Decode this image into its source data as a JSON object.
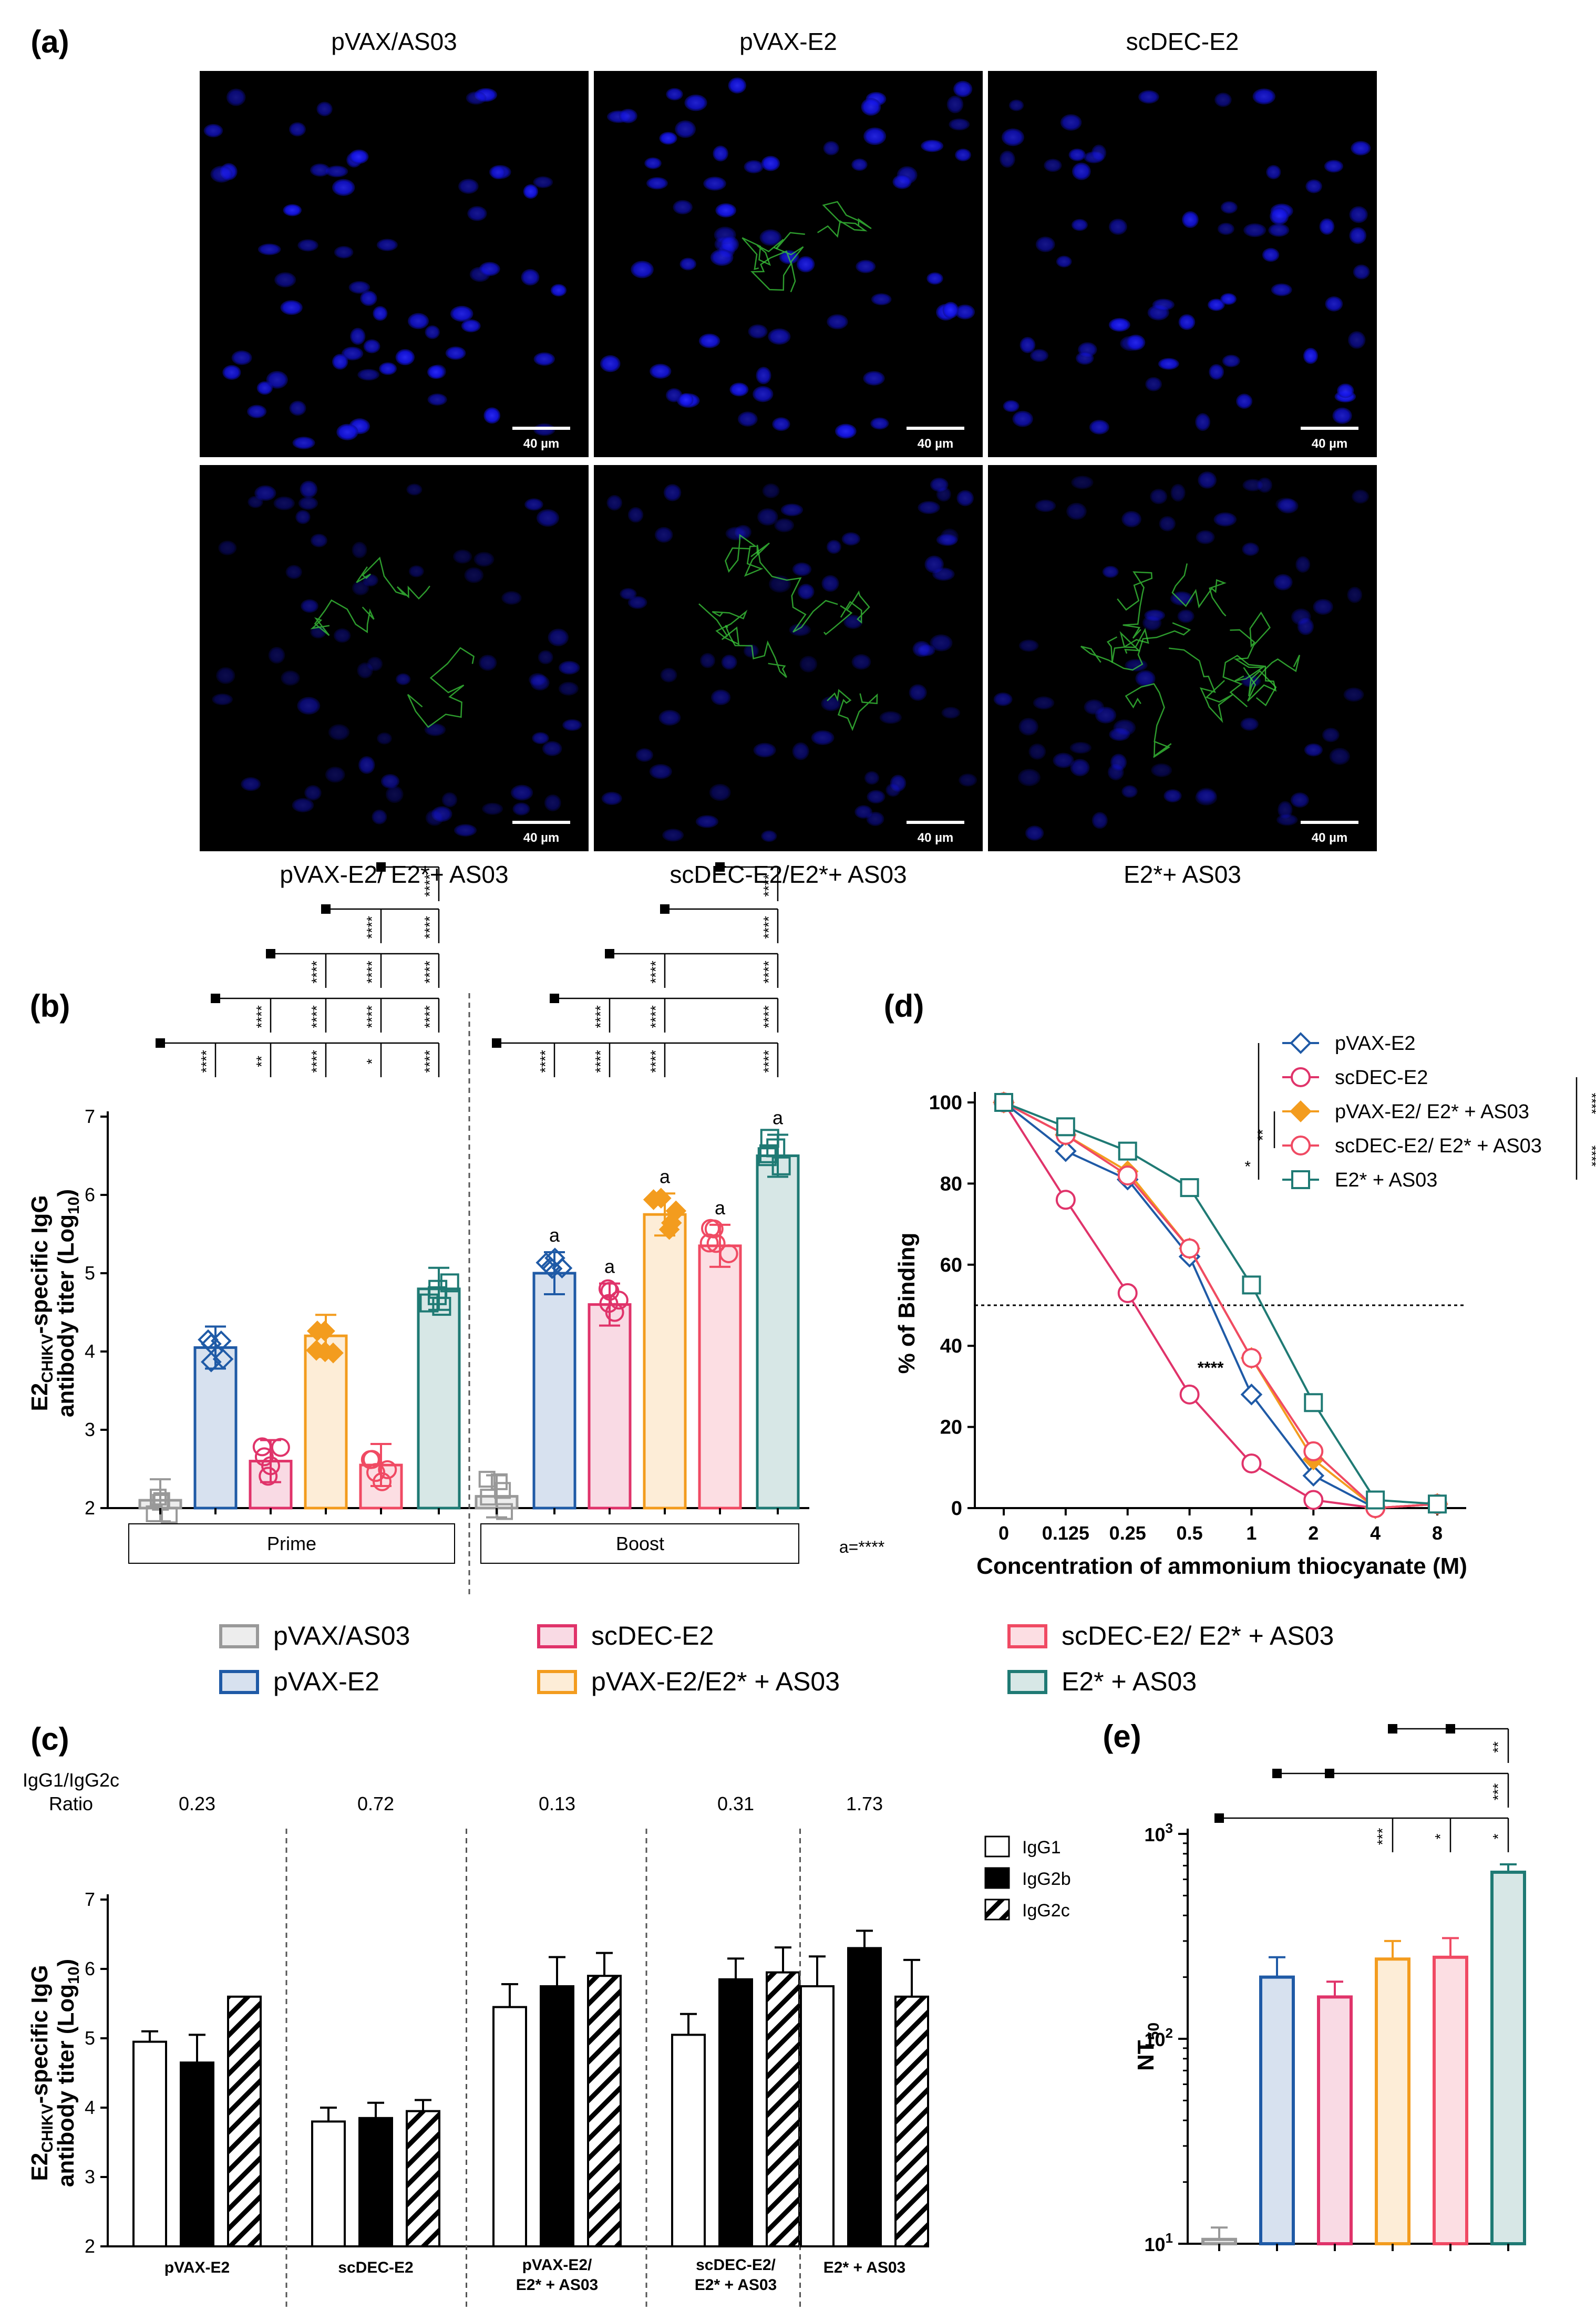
{
  "colors": {
    "pvax_as03": "#999999",
    "pvax_e2": "#1f5aa6",
    "scdec_e2": "#e0336a",
    "pvax_e2_e2_as03": "#f39c1e",
    "scdec_e2_e2_as03": "#f04a63",
    "e2_as03": "#1f7a74",
    "nucleus": "#1010ee",
    "e2_signal": "#3ccf3c"
  },
  "panel_a": {
    "label": "(a)",
    "scale_bar": "40 µm",
    "images": [
      {
        "title": "pVAX/AS03",
        "green": 0
      },
      {
        "title": "pVAX-E2",
        "green": 1
      },
      {
        "title": "scDEC-E2",
        "green": 0
      },
      {
        "title": "pVAX-E2/ E2*+ AS03",
        "green": 1
      },
      {
        "title": "scDEC-E2/E2*+ AS03",
        "green": 2
      },
      {
        "title": "E2*+ AS03",
        "green": 3
      }
    ]
  },
  "legend_main": [
    {
      "label": "pVAX/AS03",
      "key": "pvax_as03"
    },
    {
      "label": "scDEC-E2",
      "key": "scdec_e2"
    },
    {
      "label": "scDEC-E2/ E2* + AS03",
      "key": "scdec_e2_e2_as03"
    },
    {
      "label": "pVAX-E2",
      "key": "pvax_e2"
    },
    {
      "label": "pVAX-E2/E2* + AS03",
      "key": "pvax_e2_e2_as03"
    },
    {
      "label": "E2* + AS03",
      "key": "e2_as03"
    }
  ],
  "chart_data": [
    {
      "panel": "(b)",
      "type": "bar",
      "ylabel": "E2CHIKV-specific IgG antibody titer (Log10)",
      "ylim": [
        2,
        7
      ],
      "yticks": [
        "2",
        "3",
        "4",
        "5",
        "6",
        "7"
      ],
      "groups": [
        "Prime",
        "Boost"
      ],
      "series": [
        {
          "name": "pVAX/AS03",
          "prime": 2.1,
          "boost": 2.15
        },
        {
          "name": "pVAX-E2",
          "prime": 4.05,
          "boost": 5.0
        },
        {
          "name": "scDEC-E2",
          "prime": 2.6,
          "boost": 4.6
        },
        {
          "name": "pVAX-E2/E2* + AS03",
          "prime": 4.2,
          "boost": 5.75
        },
        {
          "name": "scDEC-E2/ E2* + AS03",
          "prime": 2.55,
          "boost": 5.35
        },
        {
          "name": "E2* + AS03",
          "prime": 4.8,
          "boost": 6.5
        }
      ],
      "boost_marker": "a",
      "footnote": "a=****",
      "prime_significance": [
        "****",
        "**",
        "****",
        "*",
        "****",
        "****",
        "****",
        "****",
        "****",
        "****",
        "****",
        "****",
        "****",
        "****",
        "****"
      ],
      "boost_significance": [
        "****",
        "****",
        "****",
        "****",
        "****",
        "****",
        "****",
        "****",
        "****",
        "****",
        "****",
        "****"
      ]
    },
    {
      "panel": "(c)",
      "type": "bar",
      "ratio_label": "IgG1/IgG2c Ratio",
      "ylabel": "E2CHIKV-specific IgG antibody titer (Log10)",
      "ylim": [
        2,
        7
      ],
      "yticks": [
        "2",
        "3",
        "4",
        "5",
        "6",
        "7"
      ],
      "categories": [
        "pVAX-E2",
        "scDEC-E2",
        "pVAX-E2/ E2* + AS03",
        "scDEC-E2/ E2* + AS03",
        "E2* + AS03"
      ],
      "ratios": [
        "0.23",
        "0.72",
        "0.13",
        "0.31",
        "1.73"
      ],
      "series": [
        {
          "name": "IgG1",
          "values": [
            4.95,
            3.8,
            5.45,
            5.05,
            5.75
          ],
          "errors": [
            0.15,
            0.2,
            0.33,
            0.3,
            0.43
          ]
        },
        {
          "name": "IgG2b",
          "values": [
            4.65,
            3.85,
            5.75,
            5.85,
            6.3
          ],
          "errors": [
            0.4,
            0.22,
            0.42,
            0.3,
            0.25
          ]
        },
        {
          "name": "IgG2c",
          "values": [
            5.6,
            3.95,
            5.9,
            5.95,
            5.6
          ],
          "errors": [
            0.0,
            0.16,
            0.33,
            0.36,
            0.53
          ]
        }
      ]
    },
    {
      "panel": "(d)",
      "type": "line",
      "xlabel": "Concentration of ammonium thiocyanate (M)",
      "ylabel": "% of Binding",
      "categories": [
        "0",
        "0.125",
        "0.25",
        "0.5",
        "1",
        "2",
        "4",
        "8"
      ],
      "yticks": [
        "0",
        "20",
        "40",
        "60",
        "80",
        "100"
      ],
      "ylim": [
        0,
        100
      ],
      "reference_line": 50,
      "annotation": "****",
      "legend_significance": [
        "*",
        "**",
        "****",
        "****"
      ],
      "series": [
        {
          "name": "pVAX-E2",
          "marker": "diamond",
          "values": [
            100,
            88,
            81,
            62,
            28,
            8,
            0,
            1
          ]
        },
        {
          "name": "scDEC-E2",
          "marker": "circle",
          "values": [
            100,
            76,
            53,
            28,
            11,
            2,
            0,
            1
          ]
        },
        {
          "name": "pVAX-E2/ E2* + AS03",
          "marker": "diamond-filled",
          "values": [
            100,
            92,
            83,
            64,
            37,
            12,
            0,
            1
          ]
        },
        {
          "name": "scDEC-E2/ E2* + AS03",
          "marker": "circle",
          "values": [
            100,
            92,
            82,
            64,
            37,
            14,
            0,
            1
          ]
        },
        {
          "name": "E2* + AS03",
          "marker": "square",
          "values": [
            100,
            94,
            88,
            79,
            55,
            26,
            2,
            1
          ]
        }
      ]
    },
    {
      "panel": "(e)",
      "type": "bar",
      "ylabel": "NT50",
      "yscale": "log",
      "ylim": [
        10,
        1000
      ],
      "yticks": [
        "10",
        "100",
        "1000"
      ],
      "series": [
        {
          "name": "pVAX/AS03",
          "value": 10.5,
          "error": 1.5
        },
        {
          "name": "pVAX-E2",
          "value": 200,
          "error": 50
        },
        {
          "name": "scDEC-E2",
          "value": 160,
          "error": 30
        },
        {
          "name": "pVAX-E2/E2* + AS03",
          "value": 245,
          "error": 55
        },
        {
          "name": "scDEC-E2/ E2* + AS03",
          "value": 250,
          "error": 60
        },
        {
          "name": "E2* + AS03",
          "value": 650,
          "error": 60
        }
      ],
      "significance": [
        "**",
        "***",
        "***",
        "*",
        "*"
      ]
    }
  ]
}
